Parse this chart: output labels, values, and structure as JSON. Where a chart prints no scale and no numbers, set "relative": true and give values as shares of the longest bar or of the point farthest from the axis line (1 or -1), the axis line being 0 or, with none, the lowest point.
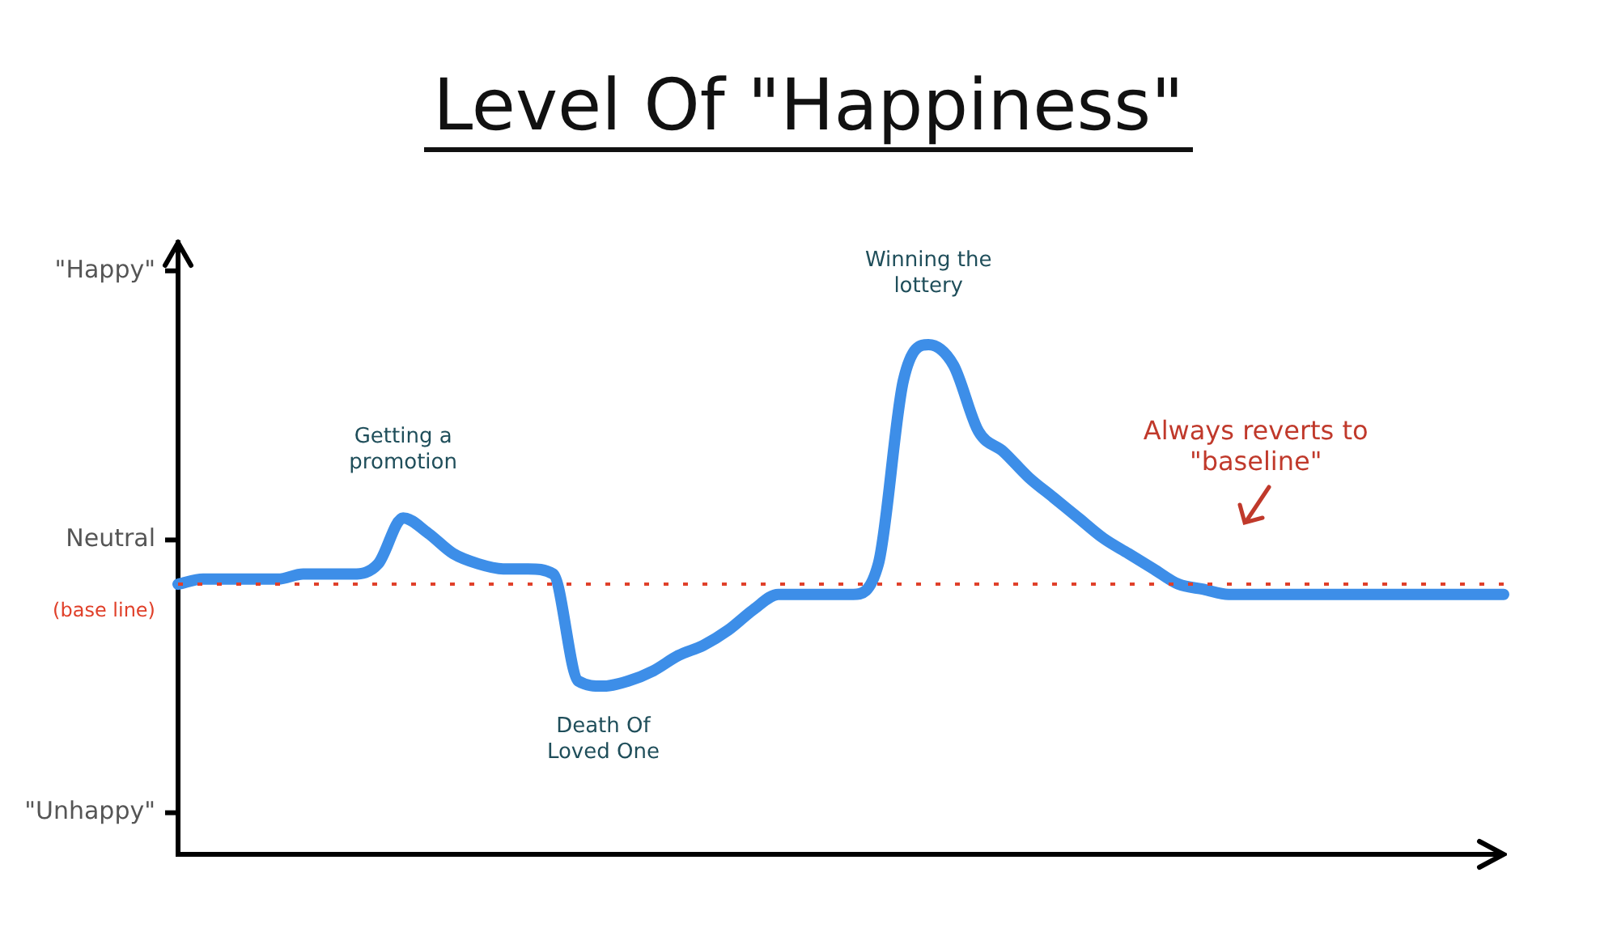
{
  "chart_data": {
    "type": "line",
    "title": "Level Of \"Happiness\"",
    "categories": [
      null,
      null,
      null,
      null,
      null,
      null,
      null,
      null,
      null,
      null,
      null,
      null,
      null,
      null,
      null,
      null,
      null,
      null,
      null,
      null,
      null,
      null,
      null,
      null,
      null,
      null,
      null,
      null,
      null,
      null,
      null,
      null,
      null,
      null,
      null,
      null,
      null,
      null,
      null,
      null,
      null,
      null,
      null,
      null,
      null,
      null,
      null,
      null,
      null,
      null,
      null,
      null,
      null,
      null
    ],
    "series": [
      {
        "color": "#3d8ee8",
        "values": [
          0.53,
          0.54,
          0.54,
          0.54,
          0.54,
          0.55,
          0.55,
          0.55,
          0.57,
          0.66,
          0.63,
          0.59,
          0.57,
          0.56,
          0.56,
          0.55,
          0.34,
          0.33,
          0.34,
          0.36,
          0.39,
          0.41,
          0.44,
          0.48,
          0.51,
          0.51,
          0.51,
          0.51,
          0.57,
          0.93,
          1,
          0.96,
          0.83,
          0.79,
          0.74,
          0.7,
          0.66,
          0.62,
          0.59,
          0.56,
          0.53,
          0.52,
          0.51,
          0.51,
          0.51,
          0.51,
          0.51,
          0.51,
          0.51,
          0.51,
          0.51,
          0.51,
          0.51,
          0.51
        ]
      }
    ],
    "relative": true,
    "ref_lines": [
      {
        "axis": "y",
        "value": 0.53,
        "label": "(base line)",
        "color": "#e0402a",
        "line_style": "dotted"
      }
    ],
    "annotations": [
      "\"Happy\"",
      "Neutral",
      "\"Unhappy\"",
      "Getting a promotion",
      "Death Of Loved One",
      "Winning the lottery",
      "Always reverts to \"baseline\""
    ],
    "tick_labels": false,
    "grid": false,
    "legend": false,
    "marker": "none",
    "line_style": "solid"
  }
}
